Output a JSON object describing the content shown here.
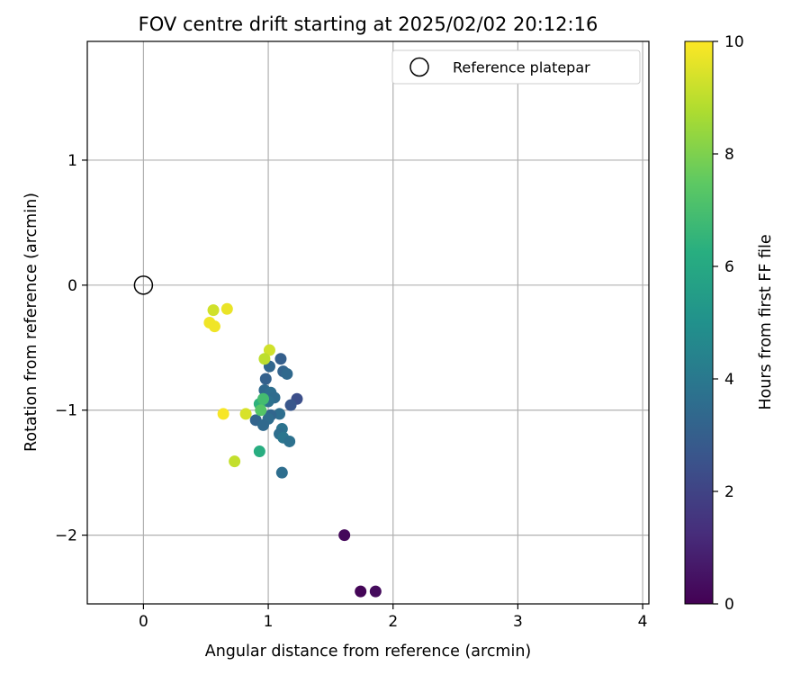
{
  "chart_data": {
    "type": "scatter",
    "title": "FOV centre drift starting at 2025/02/02 20:12:16",
    "xlabel": "Angular distance from reference (arcmin)",
    "ylabel": "Rotation from reference (arcmin)",
    "xlim": [
      -0.45,
      4.05
    ],
    "ylim": [
      -2.55,
      1.95
    ],
    "xticks": [
      0,
      1,
      2,
      3,
      4
    ],
    "yticks": [
      -2,
      -1,
      0,
      1
    ],
    "xtick_labels": [
      "0",
      "1",
      "2",
      "3",
      "4"
    ],
    "ytick_labels": [
      "−2",
      "−1",
      "0",
      "1"
    ],
    "grid": true,
    "legend": {
      "placement": "top-right",
      "entries": [
        "Reference platepar"
      ]
    },
    "reference": {
      "x": 0,
      "y": 0,
      "label": "Reference platepar"
    },
    "colorbar": {
      "label": "Hours from first FF file",
      "colormap": "viridis",
      "range": [
        0,
        10
      ],
      "ticks": [
        0,
        2,
        4,
        6,
        8,
        10
      ],
      "tick_labels": [
        "0",
        "2",
        "4",
        "6",
        "8",
        "10"
      ]
    },
    "series": [
      {
        "points": [
          {
            "x": 1.61,
            "y": -2.0,
            "c": 0.2
          },
          {
            "x": 1.74,
            "y": -2.45,
            "c": 0.1
          },
          {
            "x": 1.86,
            "y": -2.45,
            "c": 0.3
          },
          {
            "x": 1.23,
            "y": -0.91,
            "c": 2.4
          },
          {
            "x": 1.18,
            "y": -0.96,
            "c": 2.7
          },
          {
            "x": 1.1,
            "y": -0.59,
            "c": 3.0
          },
          {
            "x": 1.12,
            "y": -0.69,
            "c": 3.2
          },
          {
            "x": 1.15,
            "y": -0.71,
            "c": 3.4
          },
          {
            "x": 1.01,
            "y": -0.65,
            "c": 3.3
          },
          {
            "x": 0.98,
            "y": -0.75,
            "c": 3.1
          },
          {
            "x": 0.97,
            "y": -0.84,
            "c": 3.4
          },
          {
            "x": 1.02,
            "y": -0.86,
            "c": 3.6
          },
          {
            "x": 1.05,
            "y": -0.9,
            "c": 3.5
          },
          {
            "x": 1.0,
            "y": -0.93,
            "c": 3.7
          },
          {
            "x": 1.09,
            "y": -1.03,
            "c": 3.6
          },
          {
            "x": 1.02,
            "y": -1.04,
            "c": 3.3
          },
          {
            "x": 1.0,
            "y": -1.07,
            "c": 3.5
          },
          {
            "x": 0.9,
            "y": -1.08,
            "c": 3.2
          },
          {
            "x": 0.96,
            "y": -1.12,
            "c": 3.4
          },
          {
            "x": 1.11,
            "y": -1.15,
            "c": 3.8
          },
          {
            "x": 1.09,
            "y": -1.19,
            "c": 3.6
          },
          {
            "x": 1.12,
            "y": -1.22,
            "c": 3.9
          },
          {
            "x": 1.17,
            "y": -1.25,
            "c": 3.7
          },
          {
            "x": 1.11,
            "y": -1.5,
            "c": 3.6
          },
          {
            "x": 0.93,
            "y": -0.95,
            "c": 6.4
          },
          {
            "x": 0.96,
            "y": -0.91,
            "c": 6.9
          },
          {
            "x": 0.94,
            "y": -1.0,
            "c": 7.3
          },
          {
            "x": 0.93,
            "y": -1.33,
            "c": 6.2
          },
          {
            "x": 1.01,
            "y": -0.52,
            "c": 9.3
          },
          {
            "x": 0.97,
            "y": -0.59,
            "c": 9.0
          },
          {
            "x": 0.56,
            "y": -0.2,
            "c": 9.3
          },
          {
            "x": 0.67,
            "y": -0.19,
            "c": 9.7
          },
          {
            "x": 0.53,
            "y": -0.3,
            "c": 9.8
          },
          {
            "x": 0.57,
            "y": -0.33,
            "c": 9.8
          },
          {
            "x": 0.64,
            "y": -1.03,
            "c": 9.9
          },
          {
            "x": 0.82,
            "y": -1.03,
            "c": 9.4
          },
          {
            "x": 0.73,
            "y": -1.41,
            "c": 9.1
          }
        ]
      }
    ]
  }
}
